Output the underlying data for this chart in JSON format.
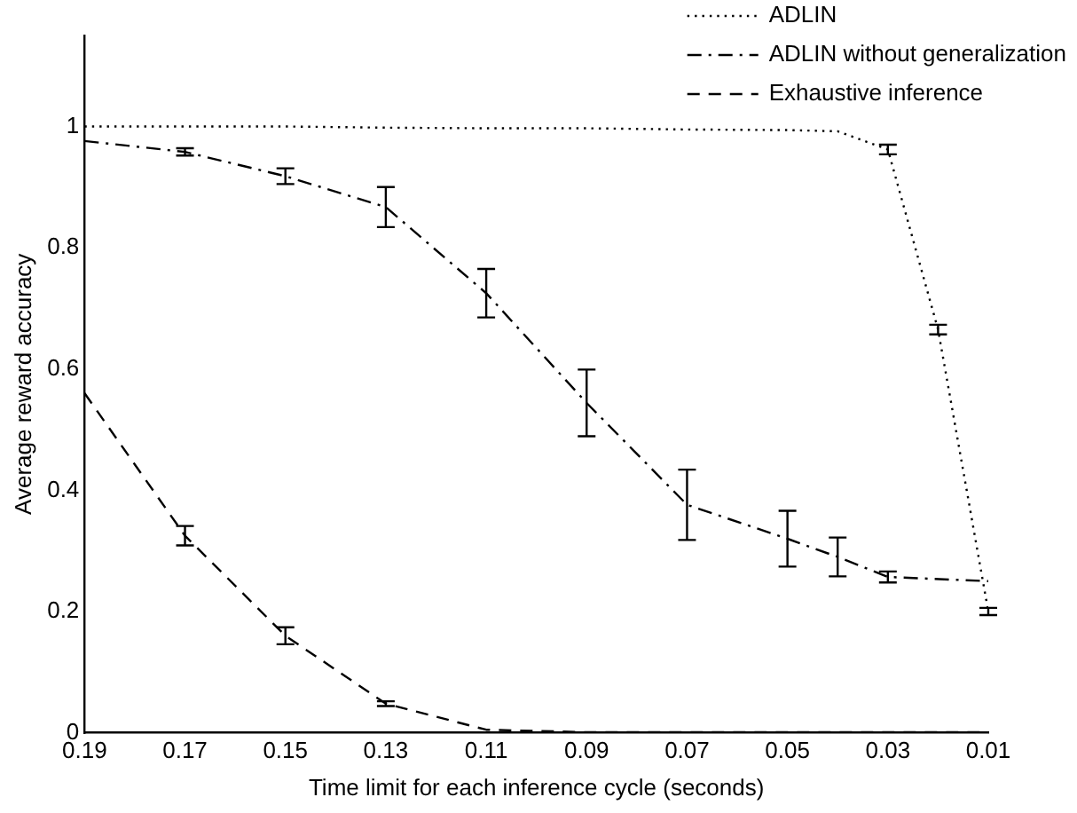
{
  "chart_data": {
    "type": "line",
    "xlabel": "Time limit for each inference cycle (seconds)",
    "ylabel": "Average reward accuracy",
    "xlim": [
      0.19,
      0.01
    ],
    "xticks": [
      0.19,
      0.17,
      0.15,
      0.13,
      0.11,
      0.09,
      0.07,
      0.05,
      0.03,
      0.01
    ],
    "ylim": [
      0,
      1.15
    ],
    "yticks": [
      0,
      0.2,
      0.4,
      0.6,
      0.8,
      1
    ],
    "grid": false,
    "legend": "top right",
    "marker": "none",
    "series": [
      {
        "name": "ADLIN",
        "color": "#000000",
        "line_style": "dotted",
        "x": [
          0.19,
          0.17,
          0.15,
          0.13,
          0.11,
          0.09,
          0.07,
          0.05,
          0.04,
          0.03,
          0.02,
          0.01
        ],
        "values": [
          1.0,
          1.0,
          1.0,
          0.998,
          0.997,
          0.997,
          0.995,
          0.994,
          0.992,
          0.962,
          0.665,
          0.2
        ],
        "errors": [
          null,
          null,
          null,
          null,
          null,
          null,
          null,
          null,
          null,
          0.008,
          0.008,
          0.006
        ]
      },
      {
        "name": "ADLIN without generalization",
        "color": "#000000",
        "line_style": "dashdot",
        "x": [
          0.19,
          0.17,
          0.15,
          0.13,
          0.11,
          0.09,
          0.07,
          0.05,
          0.04,
          0.03,
          0.01
        ],
        "values": [
          0.976,
          0.958,
          0.918,
          0.867,
          0.725,
          0.544,
          0.376,
          0.32,
          0.29,
          0.257,
          0.25
        ],
        "errors": [
          null,
          0.006,
          0.013,
          0.033,
          0.04,
          0.055,
          0.058,
          0.046,
          0.032,
          0.009,
          null
        ]
      },
      {
        "name": "Exhaustive inference",
        "color": "#000000",
        "line_style": "dashed",
        "x": [
          0.19,
          0.17,
          0.15,
          0.13,
          0.11,
          0.09,
          0.07,
          0.05,
          0.04,
          0.03,
          0.01
        ],
        "values": [
          0.56,
          0.325,
          0.16,
          0.048,
          0.005,
          0.001,
          0.001,
          0.001,
          0.001,
          0.001,
          0.001
        ],
        "errors": [
          null,
          0.016,
          0.014,
          0.004,
          null,
          null,
          null,
          null,
          null,
          null,
          null
        ]
      }
    ]
  }
}
